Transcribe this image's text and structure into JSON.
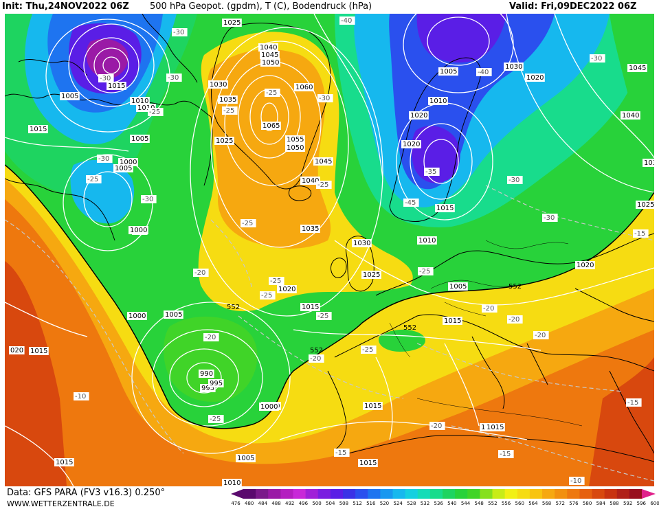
{
  "header": {
    "init": "Init: Thu,24NOV2022 06Z",
    "title": "500 hPa Geopot. (gpdm), T (C), Bodendruck (hPa)",
    "valid": "Valid: Fri,09DEC2022 06Z"
  },
  "footer": {
    "source": "Data: GFS PARA (FV3 v16.3) 0.250°",
    "website": "WWW.WETTERZENTRALE.DE"
  },
  "colors": {
    "land_line": "#000000",
    "isobar": "#ffffff",
    "isotherm": "#c8c8c8",
    "geopot_552": "#000000"
  },
  "scale": {
    "values": [
      "476",
      "480",
      "484",
      "488",
      "492",
      "496",
      "500",
      "504",
      "508",
      "512",
      "516",
      "520",
      "524",
      "528",
      "532",
      "536",
      "540",
      "544",
      "548",
      "552",
      "556",
      "560",
      "564",
      "568",
      "572",
      "576",
      "580",
      "584",
      "588",
      "592",
      "596",
      "600"
    ],
    "colors": [
      "#5a0a6e",
      "#7a1a8a",
      "#9a1aa6",
      "#b41ec0",
      "#c828d8",
      "#a020d8",
      "#7a1ee0",
      "#5a1ee6",
      "#3a32e6",
      "#2a50ee",
      "#1e74f0",
      "#1898f0",
      "#16b8ee",
      "#14d0e0",
      "#14dcb8",
      "#18dc8c",
      "#1ed460",
      "#28d23a",
      "#40d428",
      "#86e01e",
      "#c8ec18",
      "#f2f014",
      "#f6dc12",
      "#f8c410",
      "#f6a810",
      "#f2900e",
      "#ee780e",
      "#e6600e",
      "#d8480e",
      "#c83210",
      "#b02018",
      "#980e1e"
    ]
  },
  "map": {
    "isobar_labels": [
      "1025",
      "1040",
      "1045",
      "1050",
      "1060",
      "1035",
      "1065",
      "1055",
      "1050",
      "1045",
      "1040",
      "1035",
      "1030",
      "1030",
      "1025",
      "1020",
      "1015",
      "1010",
      "1005",
      "1000",
      "995",
      "1005",
      "1010",
      "1015",
      "1005",
      "1000",
      "995",
      "1000",
      "1005",
      "1020",
      "1015",
      "1010",
      "1005",
      "1015",
      "1020",
      "1010",
      "1005",
      "1015",
      "1020",
      "1030",
      "1045",
      "1040",
      "1030",
      "1025",
      "1020",
      "1015",
      "1015",
      "1015",
      "1015",
      "1005",
      "1000",
      "990",
      "995",
      "1000",
      "1005",
      "1010",
      "1015",
      "020",
      "1020",
      "1025"
    ],
    "temp_labels": [
      "-30",
      "-40",
      "-30",
      "-25",
      "-30",
      "-25",
      "-25",
      "-30",
      "-30",
      "-25",
      "-30",
      "-45",
      "-30",
      "-40",
      "-35",
      "-30",
      "-30",
      "-25",
      "-25",
      "-25",
      "-25",
      "-20",
      "-25",
      "-20",
      "-25",
      "-20",
      "-25",
      "-20",
      "-20",
      "-20",
      "-25",
      "-10",
      "-15",
      "-15",
      "-15",
      "-20",
      "-10",
      "-15"
    ],
    "geopot_labels": [
      "552",
      "552",
      "552",
      "552"
    ]
  }
}
